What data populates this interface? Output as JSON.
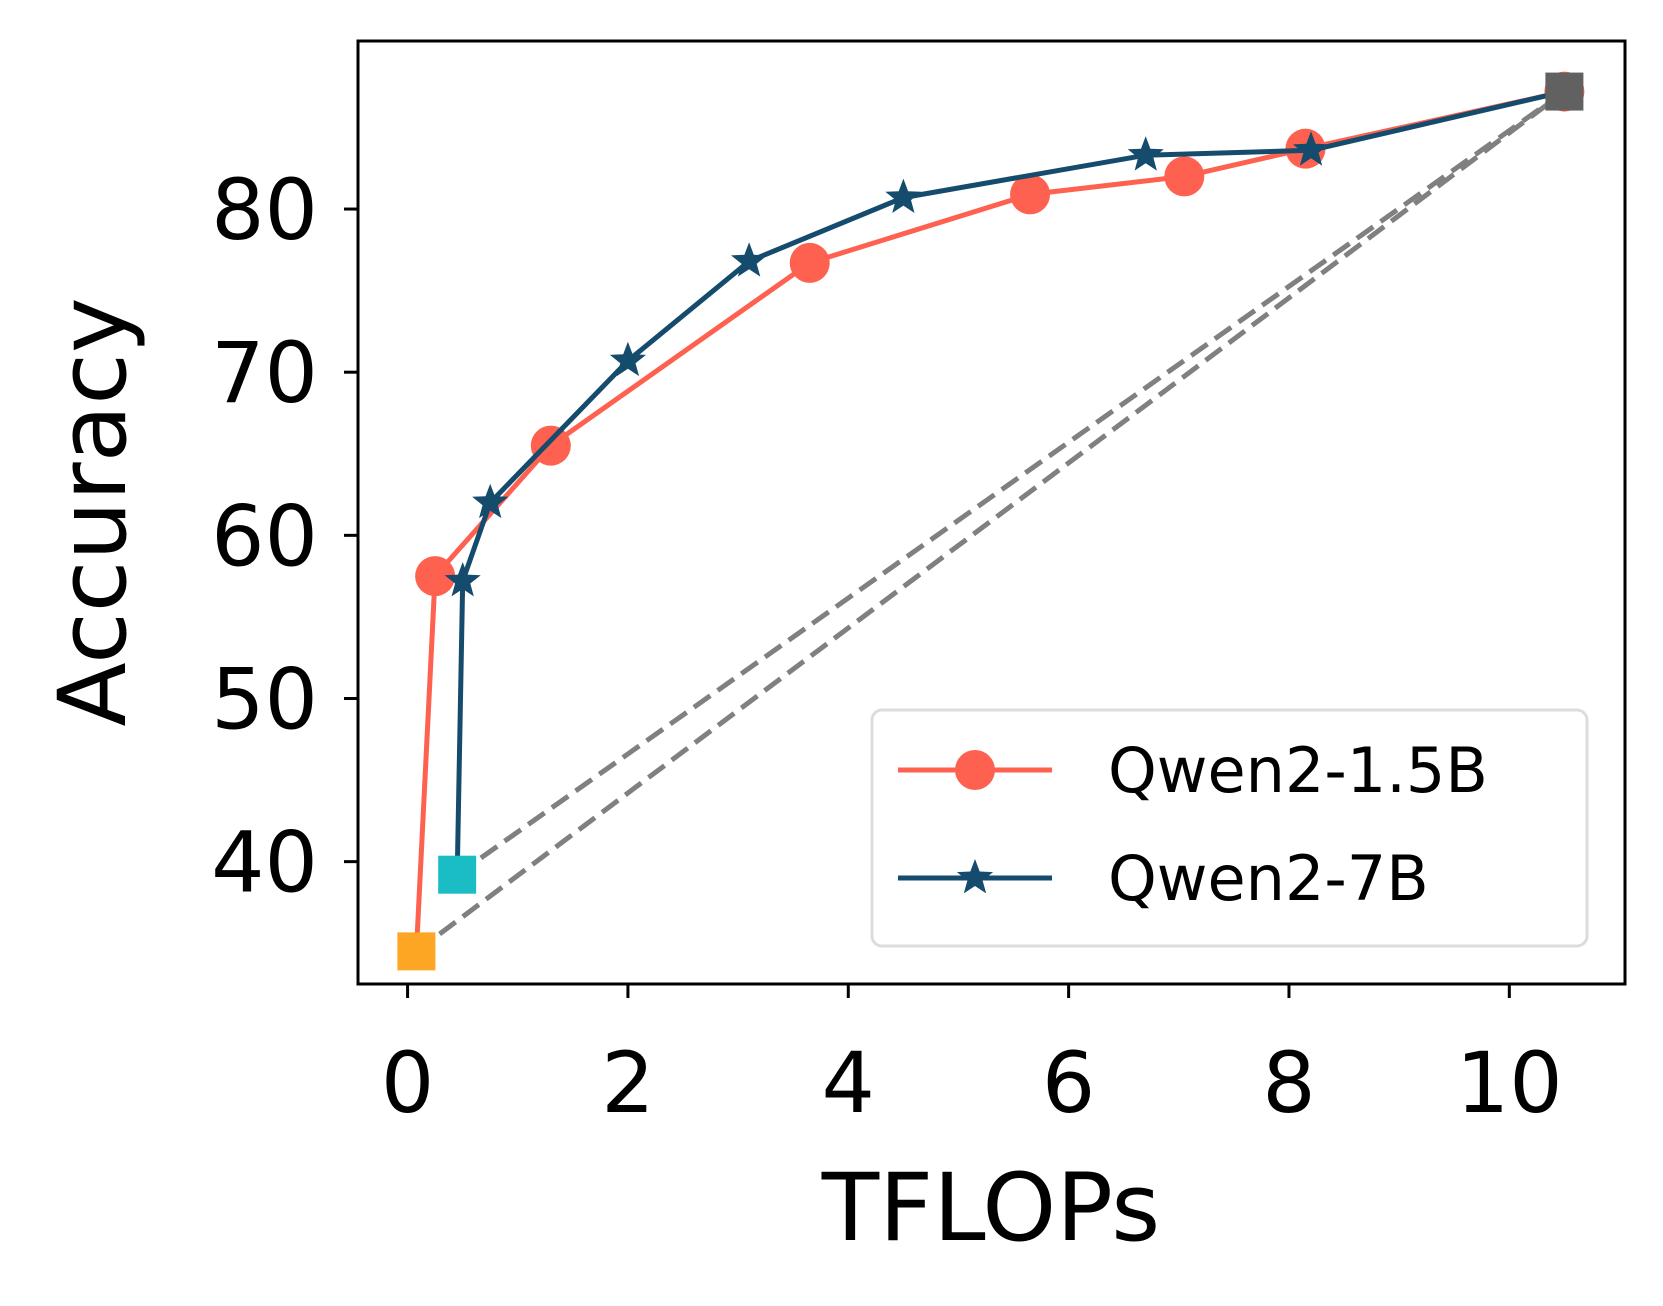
{
  "chart_data": {
    "type": "line",
    "title": "",
    "xlabel": "TFLOPs",
    "ylabel": "Accuracy",
    "xlim": [
      -0.45,
      11.05
    ],
    "ylim": [
      32.5,
      90.3
    ],
    "xticks": [
      0,
      2,
      4,
      6,
      8,
      10
    ],
    "yticks": [
      40,
      50,
      60,
      70,
      80
    ],
    "grid": false,
    "legend_position": "lower-right",
    "series": [
      {
        "name": "Qwen2-1.5B",
        "color": "#fe6150",
        "marker": "circle",
        "x": [
          0.25,
          1.3,
          3.65,
          5.65,
          7.05,
          8.15,
          10.5
        ],
        "y": [
          57.5,
          65.5,
          76.7,
          80.9,
          82.0,
          83.7,
          87.2
        ]
      },
      {
        "name": "Qwen2-7B",
        "color": "#154b6c",
        "marker": "star",
        "x": [
          0.5,
          0.75,
          2.0,
          3.1,
          4.5,
          6.7,
          8.2,
          10.5
        ],
        "y": [
          57.2,
          62.0,
          70.7,
          76.8,
          80.7,
          83.3,
          83.6,
          87.2
        ]
      }
    ],
    "base_lines": [
      {
        "name": "Qwen2-1.5B start",
        "color": "#fe6150",
        "x": [
          0.08,
          0.25
        ],
        "y": [
          34.5,
          57.5
        ]
      },
      {
        "name": "Qwen2-7B start",
        "color": "#154b6c",
        "x": [
          0.45,
          0.5
        ],
        "y": [
          39.2,
          57.2
        ]
      }
    ],
    "reference_lines": [
      {
        "name": "baseline 1",
        "color": "#808080",
        "style": "dashed",
        "x": [
          0.08,
          10.5
        ],
        "y": [
          34.5,
          87.2
        ]
      },
      {
        "name": "baseline 2",
        "color": "#808080",
        "style": "dashed",
        "x": [
          0.45,
          10.5
        ],
        "y": [
          39.2,
          87.2
        ]
      }
    ],
    "anchor_points": [
      {
        "name": "small-model-anchor",
        "color": "#fca623",
        "marker": "square",
        "x": 0.08,
        "y": 34.5
      },
      {
        "name": "medium-model-anchor",
        "color": "#1bbdc4",
        "marker": "square",
        "x": 0.45,
        "y": 39.2
      },
      {
        "name": "large-model-anchor",
        "color": "#616161",
        "marker": "square",
        "x": 10.5,
        "y": 87.2
      }
    ]
  }
}
